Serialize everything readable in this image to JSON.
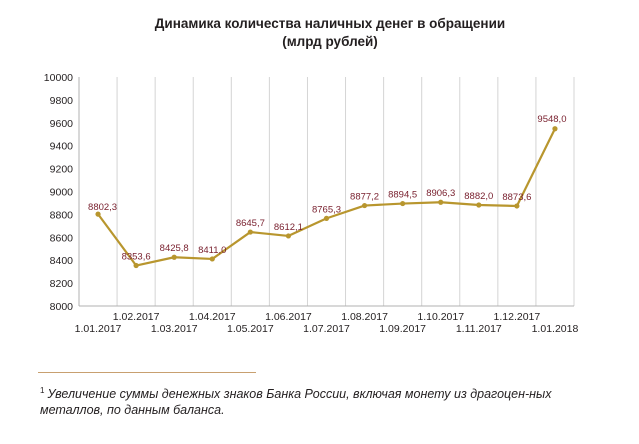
{
  "chart_data": {
    "type": "line",
    "title": [
      "Динамика количества наличных денег в обращении",
      "(млрд рублей)"
    ],
    "categories": [
      "1.01.2017",
      "1.02.2017",
      "1.03.2017",
      "1.04.2017",
      "1.05.2017",
      "1.06.2017",
      "1.07.2017",
      "1.08.2017",
      "1.09.2017",
      "1.10.2017",
      "1.11.2017",
      "1.12.2017",
      "1.01.2018"
    ],
    "values": [
      8802.3,
      8353.6,
      8425.8,
      8411.0,
      8645.7,
      8612.1,
      8765.3,
      8877.2,
      8894.5,
      8906.3,
      8882.0,
      8873.6,
      9548.0
    ],
    "value_labels": [
      "8802,3",
      "8353,6",
      "8425,8",
      "8411,0",
      "8645,7",
      "8612,1",
      "8765,3",
      "8877,2",
      "8894,5",
      "8906,3",
      "8882,0",
      "8873,6",
      "9548,0"
    ],
    "ylim": [
      8000,
      10000
    ],
    "yticks": [
      8000,
      8200,
      8400,
      8600,
      8800,
      9000,
      9200,
      9400,
      9600,
      9800,
      10000
    ],
    "grid": "vertical",
    "legend": "none",
    "line_color": "#b8962e",
    "label_color": "#7a2230"
  },
  "footnote": {
    "marker": "1",
    "text": "Увеличение суммы денежных знаков Банка России, включая монету из драгоцен-ных металлов, по данным баланса."
  }
}
